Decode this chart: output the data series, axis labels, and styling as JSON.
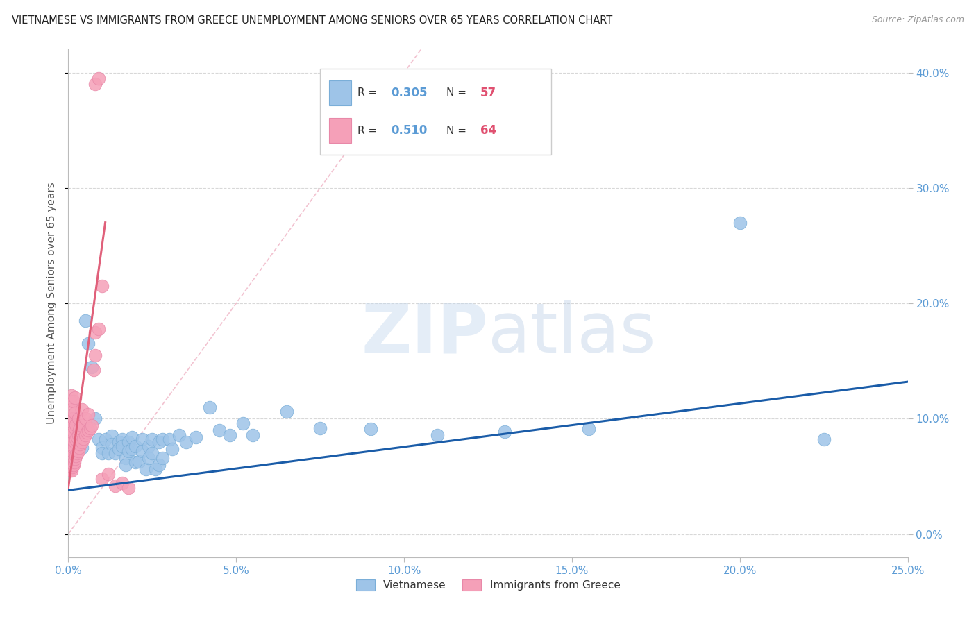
{
  "title": "VIETNAMESE VS IMMIGRANTS FROM GREECE UNEMPLOYMENT AMONG SENIORS OVER 65 YEARS CORRELATION CHART",
  "source": "Source: ZipAtlas.com",
  "ylabel": "Unemployment Among Seniors over 65 years",
  "xlim": [
    0.0,
    0.25
  ],
  "ylim": [
    -0.02,
    0.42
  ],
  "watermark_zip": "ZIP",
  "watermark_atlas": "atlas",
  "axis_color": "#5b9bd5",
  "grid_color": "#d8d8d8",
  "viet_R": "0.305",
  "viet_N": "57",
  "greece_R": "0.510",
  "greece_N": "64",
  "viet_color": "#9ec4e8",
  "greece_color": "#f5a0b8",
  "viet_line_color": "#1a5ca8",
  "greece_line_color": "#e0607a",
  "diagonal_color": "#f0b8c8",
  "vietnamese_scatter": [
    [
      0.003,
      0.095
    ],
    [
      0.004,
      0.075
    ],
    [
      0.005,
      0.185
    ],
    [
      0.006,
      0.165
    ],
    [
      0.007,
      0.145
    ],
    [
      0.008,
      0.1
    ],
    [
      0.009,
      0.082
    ],
    [
      0.01,
      0.075
    ],
    [
      0.01,
      0.07
    ],
    [
      0.011,
      0.082
    ],
    [
      0.012,
      0.07
    ],
    [
      0.013,
      0.085
    ],
    [
      0.013,
      0.078
    ],
    [
      0.014,
      0.07
    ],
    [
      0.015,
      0.08
    ],
    [
      0.015,
      0.074
    ],
    [
      0.016,
      0.082
    ],
    [
      0.016,
      0.076
    ],
    [
      0.017,
      0.066
    ],
    [
      0.017,
      0.06
    ],
    [
      0.018,
      0.08
    ],
    [
      0.018,
      0.072
    ],
    [
      0.019,
      0.084
    ],
    [
      0.019,
      0.074
    ],
    [
      0.02,
      0.062
    ],
    [
      0.02,
      0.076
    ],
    [
      0.021,
      0.063
    ],
    [
      0.022,
      0.082
    ],
    [
      0.022,
      0.072
    ],
    [
      0.023,
      0.056
    ],
    [
      0.024,
      0.076
    ],
    [
      0.024,
      0.066
    ],
    [
      0.025,
      0.082
    ],
    [
      0.025,
      0.07
    ],
    [
      0.026,
      0.056
    ],
    [
      0.027,
      0.08
    ],
    [
      0.027,
      0.06
    ],
    [
      0.028,
      0.082
    ],
    [
      0.028,
      0.066
    ],
    [
      0.03,
      0.082
    ],
    [
      0.031,
      0.074
    ],
    [
      0.033,
      0.086
    ],
    [
      0.035,
      0.08
    ],
    [
      0.038,
      0.084
    ],
    [
      0.042,
      0.11
    ],
    [
      0.045,
      0.09
    ],
    [
      0.048,
      0.086
    ],
    [
      0.052,
      0.096
    ],
    [
      0.055,
      0.086
    ],
    [
      0.065,
      0.106
    ],
    [
      0.075,
      0.092
    ],
    [
      0.09,
      0.091
    ],
    [
      0.11,
      0.086
    ],
    [
      0.13,
      0.089
    ],
    [
      0.155,
      0.091
    ],
    [
      0.2,
      0.27
    ],
    [
      0.225,
      0.082
    ]
  ],
  "greece_scatter": [
    [
      0.0005,
      0.055
    ],
    [
      0.0005,
      0.075
    ],
    [
      0.0005,
      0.085
    ],
    [
      0.0005,
      0.1
    ],
    [
      0.0005,
      0.115
    ],
    [
      0.0008,
      0.06
    ],
    [
      0.0008,
      0.078
    ],
    [
      0.0008,
      0.09
    ],
    [
      0.001,
      0.055
    ],
    [
      0.001,
      0.07
    ],
    [
      0.001,
      0.082
    ],
    [
      0.001,
      0.095
    ],
    [
      0.001,
      0.108
    ],
    [
      0.001,
      0.12
    ],
    [
      0.0012,
      0.058
    ],
    [
      0.0012,
      0.072
    ],
    [
      0.0012,
      0.088
    ],
    [
      0.0015,
      0.06
    ],
    [
      0.0015,
      0.075
    ],
    [
      0.0015,
      0.088
    ],
    [
      0.0015,
      0.1
    ],
    [
      0.0015,
      0.115
    ],
    [
      0.0018,
      0.062
    ],
    [
      0.0018,
      0.076
    ],
    [
      0.002,
      0.065
    ],
    [
      0.002,
      0.08
    ],
    [
      0.002,
      0.092
    ],
    [
      0.002,
      0.105
    ],
    [
      0.002,
      0.118
    ],
    [
      0.0022,
      0.068
    ],
    [
      0.0022,
      0.082
    ],
    [
      0.0022,
      0.095
    ],
    [
      0.0025,
      0.07
    ],
    [
      0.0025,
      0.084
    ],
    [
      0.003,
      0.072
    ],
    [
      0.003,
      0.086
    ],
    [
      0.003,
      0.1
    ],
    [
      0.0032,
      0.075
    ],
    [
      0.0032,
      0.09
    ],
    [
      0.0035,
      0.078
    ],
    [
      0.0035,
      0.092
    ],
    [
      0.004,
      0.08
    ],
    [
      0.004,
      0.094
    ],
    [
      0.004,
      0.108
    ],
    [
      0.0045,
      0.083
    ],
    [
      0.005,
      0.086
    ],
    [
      0.005,
      0.1
    ],
    [
      0.0055,
      0.088
    ],
    [
      0.006,
      0.09
    ],
    [
      0.006,
      0.104
    ],
    [
      0.0065,
      0.092
    ],
    [
      0.007,
      0.094
    ],
    [
      0.0075,
      0.142
    ],
    [
      0.008,
      0.155
    ],
    [
      0.008,
      0.175
    ],
    [
      0.009,
      0.178
    ],
    [
      0.01,
      0.215
    ],
    [
      0.01,
      0.048
    ],
    [
      0.012,
      0.052
    ],
    [
      0.014,
      0.042
    ],
    [
      0.016,
      0.044
    ],
    [
      0.018,
      0.04
    ],
    [
      0.008,
      0.39
    ],
    [
      0.009,
      0.395
    ]
  ],
  "vietnamese_line_x": [
    0.0,
    0.25
  ],
  "vietnamese_line_y": [
    0.038,
    0.132
  ],
  "greece_line_x": [
    0.0,
    0.011
  ],
  "greece_line_y": [
    0.04,
    0.27
  ]
}
